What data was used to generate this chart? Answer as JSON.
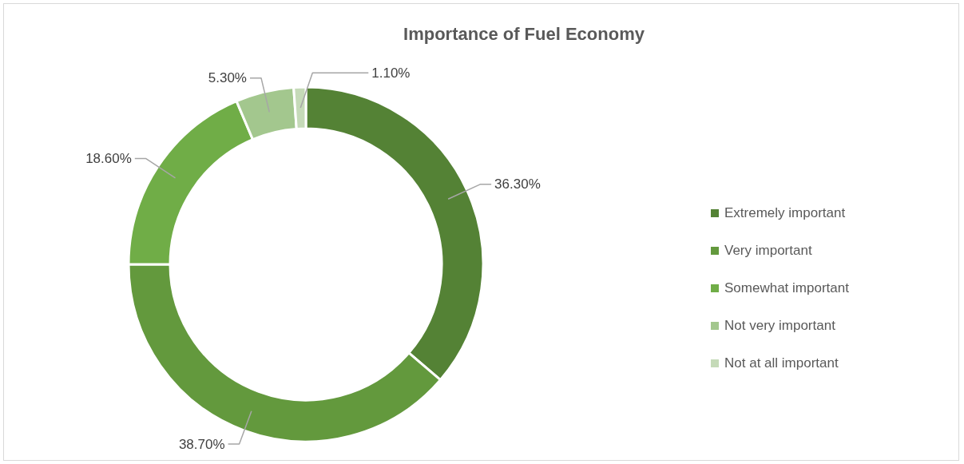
{
  "chart_data": {
    "type": "donut",
    "title": "Importance of Fuel Economy",
    "categories": [
      "Extremely important",
      "Very important",
      "Somewhat important",
      "Not very important",
      "Not at all important"
    ],
    "values": [
      36.3,
      38.7,
      18.6,
      5.3,
      1.1
    ],
    "colors": [
      "#548235",
      "#63993d",
      "#70ad47",
      "#a3c78e",
      "#c5dab8"
    ],
    "value_labels": [
      "36.30%",
      "38.70%",
      "18.60%",
      "5.30%",
      "1.10%"
    ],
    "legend": "right"
  }
}
